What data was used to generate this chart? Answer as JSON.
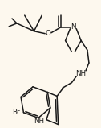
{
  "bg_color": "#fdf8ee",
  "lc": "#1a1a1a",
  "lw": 1.1,
  "fs": 5.8,
  "figsize": [
    1.26,
    1.59
  ],
  "dpi": 100,
  "labels": {
    "O_ester": "O",
    "N_azet": "N",
    "NH_linker": "NH",
    "NH_indole": "H",
    "Br": "Br"
  }
}
